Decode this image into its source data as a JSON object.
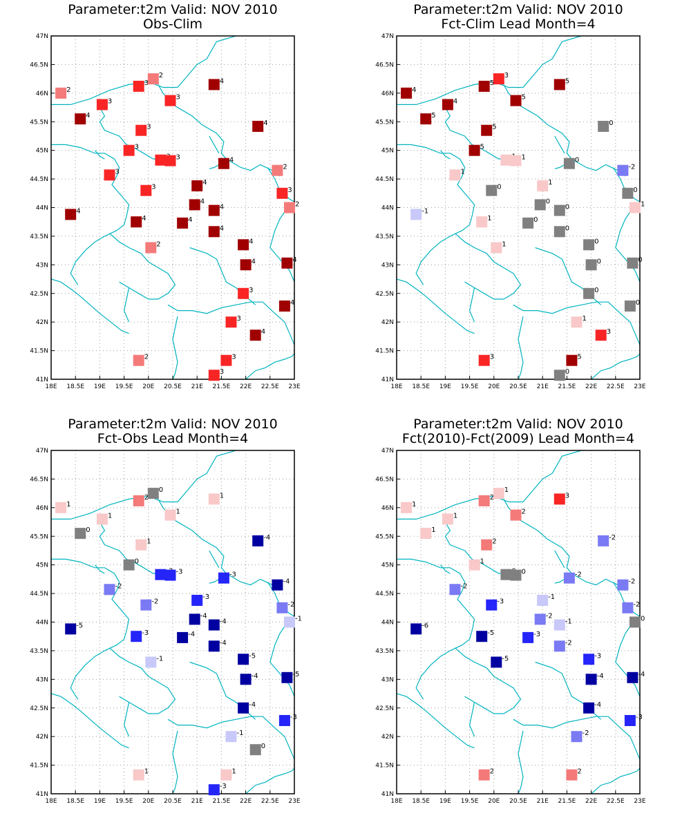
{
  "figure": {
    "panels": [
      {
        "title_line1": "Parameter:t2m Valid: NOV 2010",
        "title_line2": "Obs-Clim",
        "stations": [
          [
            18.2,
            46.0,
            2
          ],
          [
            18.6,
            45.55,
            4
          ],
          [
            19.05,
            45.8,
            3
          ],
          [
            19.8,
            46.12,
            3
          ],
          [
            20.1,
            46.25,
            2
          ],
          [
            20.45,
            45.87,
            3
          ],
          [
            21.35,
            46.15,
            4
          ],
          [
            22.25,
            45.42,
            4
          ],
          [
            19.85,
            45.35,
            3
          ],
          [
            19.6,
            45.0,
            3
          ],
          [
            20.25,
            44.83,
            3
          ],
          [
            20.45,
            44.82,
            3
          ],
          [
            21.55,
            44.77,
            4
          ],
          [
            22.65,
            44.65,
            2
          ],
          [
            19.2,
            44.57,
            3
          ],
          [
            19.95,
            44.3,
            3
          ],
          [
            21.0,
            44.38,
            4
          ],
          [
            20.95,
            44.05,
            4
          ],
          [
            21.35,
            43.95,
            4
          ],
          [
            22.75,
            44.25,
            3
          ],
          [
            22.9,
            44.0,
            2
          ],
          [
            18.4,
            43.88,
            4
          ],
          [
            19.75,
            43.75,
            4
          ],
          [
            20.7,
            43.73,
            4
          ],
          [
            21.35,
            43.58,
            4
          ],
          [
            21.95,
            43.35,
            4
          ],
          [
            20.05,
            43.3,
            2
          ],
          [
            22.0,
            43.0,
            4
          ],
          [
            22.85,
            43.03,
            4
          ],
          [
            21.95,
            42.5,
            3
          ],
          [
            22.8,
            42.28,
            4
          ],
          [
            21.7,
            42.0,
            3
          ],
          [
            22.2,
            41.77,
            4
          ],
          [
            19.8,
            41.33,
            2
          ],
          [
            21.6,
            41.33,
            3
          ],
          [
            21.35,
            41.07,
            3
          ]
        ]
      },
      {
        "title_line1": "Parameter:t2m Valid: NOV 2010",
        "title_line2": "Fct-Clim Lead Month=4",
        "stations": [
          [
            18.2,
            46.0,
            4
          ],
          [
            18.6,
            45.55,
            5
          ],
          [
            19.05,
            45.8,
            4
          ],
          [
            19.8,
            46.12,
            5
          ],
          [
            20.1,
            46.25,
            3
          ],
          [
            20.45,
            45.87,
            5
          ],
          [
            21.35,
            46.15,
            5
          ],
          [
            22.25,
            45.42,
            0
          ],
          [
            19.85,
            45.35,
            5
          ],
          [
            19.6,
            45.0,
            5
          ],
          [
            20.25,
            44.83,
            1
          ],
          [
            20.45,
            44.82,
            1
          ],
          [
            21.55,
            44.77,
            0
          ],
          [
            22.65,
            44.65,
            -2
          ],
          [
            19.2,
            44.57,
            1
          ],
          [
            19.95,
            44.3,
            0
          ],
          [
            21.0,
            44.38,
            1
          ],
          [
            20.95,
            44.05,
            0
          ],
          [
            21.35,
            43.95,
            0
          ],
          [
            22.75,
            44.25,
            0
          ],
          [
            22.9,
            44.0,
            1
          ],
          [
            18.4,
            43.88,
            -1
          ],
          [
            19.75,
            43.75,
            1
          ],
          [
            20.7,
            43.73,
            0
          ],
          [
            21.35,
            43.58,
            0
          ],
          [
            21.95,
            43.35,
            0
          ],
          [
            20.05,
            43.3,
            1
          ],
          [
            22.0,
            43.0,
            0
          ],
          [
            22.85,
            43.03,
            0
          ],
          [
            21.95,
            42.5,
            0
          ],
          [
            22.8,
            42.28,
            0
          ],
          [
            21.7,
            42.0,
            1
          ],
          [
            22.2,
            41.77,
            3
          ],
          [
            19.8,
            41.33,
            3
          ],
          [
            21.6,
            41.33,
            5
          ],
          [
            21.35,
            41.07,
            0
          ]
        ]
      },
      {
        "title_line1": "Parameter:t2m Valid: NOV 2010",
        "title_line2": "Fct-Obs Lead Month=4",
        "stations": [
          [
            18.2,
            46.0,
            1
          ],
          [
            18.6,
            45.55,
            0
          ],
          [
            19.05,
            45.8,
            1
          ],
          [
            19.8,
            46.12,
            2
          ],
          [
            20.1,
            46.25,
            0
          ],
          [
            20.45,
            45.87,
            1
          ],
          [
            21.35,
            46.15,
            1
          ],
          [
            22.25,
            45.42,
            -4
          ],
          [
            19.85,
            45.35,
            1
          ],
          [
            19.6,
            45.0,
            0
          ],
          [
            20.25,
            44.83,
            -3
          ],
          [
            20.45,
            44.82,
            -3
          ],
          [
            21.55,
            44.77,
            -3
          ],
          [
            22.65,
            44.65,
            -4
          ],
          [
            19.2,
            44.57,
            -2
          ],
          [
            19.95,
            44.3,
            -2
          ],
          [
            21.0,
            44.38,
            -3
          ],
          [
            20.95,
            44.05,
            -4
          ],
          [
            21.35,
            43.95,
            -4
          ],
          [
            22.75,
            44.25,
            -2
          ],
          [
            22.9,
            44.0,
            -1
          ],
          [
            18.4,
            43.88,
            -5
          ],
          [
            19.75,
            43.75,
            -3
          ],
          [
            20.7,
            43.73,
            -4
          ],
          [
            21.35,
            43.58,
            -4
          ],
          [
            21.95,
            43.35,
            -5
          ],
          [
            20.05,
            43.3,
            -1
          ],
          [
            22.0,
            43.0,
            -4
          ],
          [
            22.85,
            43.03,
            -5
          ],
          [
            21.95,
            42.5,
            -4
          ],
          [
            22.8,
            42.28,
            -3
          ],
          [
            21.7,
            42.0,
            -1
          ],
          [
            22.2,
            41.77,
            0
          ],
          [
            19.8,
            41.33,
            1
          ],
          [
            21.6,
            41.33,
            1
          ],
          [
            21.35,
            41.07,
            -3
          ]
        ]
      },
      {
        "title_line1": "Parameter:t2m Valid: NOV 2010",
        "title_line2": "Fct(2010)-Fct(2009) Lead Month=4",
        "stations": [
          [
            18.2,
            46.0,
            1
          ],
          [
            18.6,
            45.55,
            1
          ],
          [
            19.05,
            45.8,
            1
          ],
          [
            19.8,
            46.12,
            2
          ],
          [
            20.1,
            46.25,
            1
          ],
          [
            20.45,
            45.87,
            2
          ],
          [
            21.35,
            46.15,
            3
          ],
          [
            22.25,
            45.42,
            -2
          ],
          [
            19.85,
            45.35,
            2
          ],
          [
            19.6,
            45.0,
            1
          ],
          [
            20.25,
            44.83,
            0
          ],
          [
            20.45,
            44.82,
            0
          ],
          [
            21.55,
            44.77,
            -2
          ],
          [
            22.65,
            44.65,
            -2
          ],
          [
            19.2,
            44.57,
            -2
          ],
          [
            19.95,
            44.3,
            -3
          ],
          [
            21.0,
            44.38,
            -1
          ],
          [
            20.95,
            44.05,
            -2
          ],
          [
            21.35,
            43.95,
            -1
          ],
          [
            22.75,
            44.25,
            -2
          ],
          [
            22.9,
            44.0,
            0
          ],
          [
            18.4,
            43.88,
            -6
          ],
          [
            19.75,
            43.75,
            -5
          ],
          [
            20.7,
            43.73,
            -3
          ],
          [
            21.35,
            43.58,
            -2
          ],
          [
            21.95,
            43.35,
            -3
          ],
          [
            20.05,
            43.3,
            -5
          ],
          [
            22.0,
            43.0,
            -4
          ],
          [
            22.85,
            43.03,
            -4
          ],
          [
            21.95,
            42.5,
            -4
          ],
          [
            22.8,
            42.28,
            -3
          ],
          [
            21.7,
            42.0,
            -2
          ],
          [
            19.8,
            41.33,
            2
          ],
          [
            21.6,
            41.33,
            2
          ]
        ]
      }
    ],
    "axes": {
      "x_ticks": [
        "18E",
        "18.5E",
        "19E",
        "19.5E",
        "20E",
        "20.5E",
        "21E",
        "21.5E",
        "22E",
        "22.5E",
        "23E"
      ],
      "y_ticks": [
        "41N",
        "41.5N",
        "42N",
        "42.5N",
        "43N",
        "43.5N",
        "44N",
        "44.5N",
        "45N",
        "45.5N",
        "46N",
        "46.5N",
        "47N"
      ],
      "lon_range": [
        18,
        23
      ],
      "lat_range": [
        41,
        47
      ],
      "grid": "dotted"
    },
    "colors": {
      "pos1": "#f9c8c8",
      "pos2": "#f47a7a",
      "pos3": "#f92525",
      "pos4": "#a00000",
      "zero": "#808080",
      "neg1": "#c8c8f9",
      "neg2": "#7a7af4",
      "neg3": "#2525f9",
      "neg4": "#0000a0",
      "coast": "#00b4c0",
      "grid": "#9a9a9a",
      "frame": "#000000"
    }
  }
}
